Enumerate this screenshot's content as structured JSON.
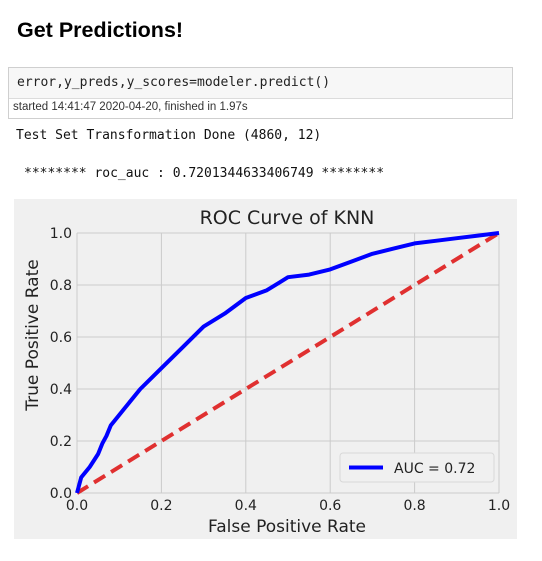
{
  "heading": "Get Predictions!",
  "cell": {
    "code": "error,y_preds,y_scores=modeler.predict()",
    "execution_info": "started 14:41:47 2020-04-20, finished in 1.97s"
  },
  "output": {
    "line1": "Test Set Transformation Done (4860, 12)",
    "line2": "******** roc_auc : 0.7201344633406749 ********"
  },
  "colors": {
    "roc_line": "#0000ff",
    "diagonal": "#e03030",
    "plot_bg": "#f0f0f0",
    "grid": "#cbcbcb"
  },
  "chart_data": {
    "type": "line",
    "title": "ROC Curve of KNN",
    "xlabel": "False Positive Rate",
    "ylabel": "True Positive Rate",
    "xlim": [
      0.0,
      1.0
    ],
    "ylim": [
      0.0,
      1.0
    ],
    "xticks": [
      "0.0",
      "0.2",
      "0.4",
      "0.6",
      "0.8",
      "1.0"
    ],
    "yticks": [
      "0.0",
      "0.2",
      "0.4",
      "0.6",
      "0.8",
      "1.0"
    ],
    "grid": true,
    "legend_position": "bottom-right",
    "series": [
      {
        "name": "AUC = 0.72",
        "style": "solid",
        "x": [
          0.0,
          0.01,
          0.03,
          0.05,
          0.06,
          0.07,
          0.08,
          0.1,
          0.12,
          0.15,
          0.2,
          0.25,
          0.3,
          0.35,
          0.4,
          0.45,
          0.48,
          0.5,
          0.55,
          0.6,
          0.65,
          0.7,
          0.75,
          0.8,
          0.85,
          0.9,
          0.95,
          1.0
        ],
        "y": [
          0.0,
          0.06,
          0.1,
          0.15,
          0.19,
          0.22,
          0.26,
          0.3,
          0.34,
          0.4,
          0.48,
          0.56,
          0.64,
          0.69,
          0.75,
          0.78,
          0.81,
          0.83,
          0.84,
          0.86,
          0.89,
          0.92,
          0.94,
          0.96,
          0.97,
          0.98,
          0.99,
          1.0
        ]
      },
      {
        "style": "dashed",
        "x": [
          0.0,
          1.0
        ],
        "y": [
          0.0,
          1.0
        ]
      }
    ]
  }
}
